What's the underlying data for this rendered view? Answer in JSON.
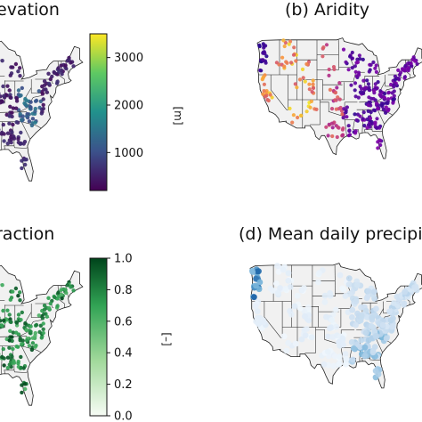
{
  "chart_data": [
    {
      "type": "map",
      "title": "evation",
      "colorbar": {
        "colormap": "viridis",
        "min": 200,
        "max": 3500,
        "ticks": [
          1000,
          2000,
          3000
        ],
        "tick_labels": [
          "1000",
          "2000",
          "3000"
        ],
        "unit_label": "[m]"
      }
    },
    {
      "type": "map",
      "title": "(b) Aridity",
      "colormap": "plasma"
    },
    {
      "type": "map",
      "title": "raction",
      "colorbar": {
        "colormap": "greens",
        "min": 0.0,
        "max": 1.0,
        "ticks": [
          0.0,
          0.2,
          0.4,
          0.6,
          0.8,
          1.0
        ],
        "tick_labels": [
          "0.0",
          "0.2",
          "0.4",
          "0.6",
          "0.8",
          "1.0"
        ],
        "unit_label": "[–]"
      }
    },
    {
      "type": "map",
      "title": "(d) Mean daily precipit",
      "colormap": "blues"
    }
  ]
}
